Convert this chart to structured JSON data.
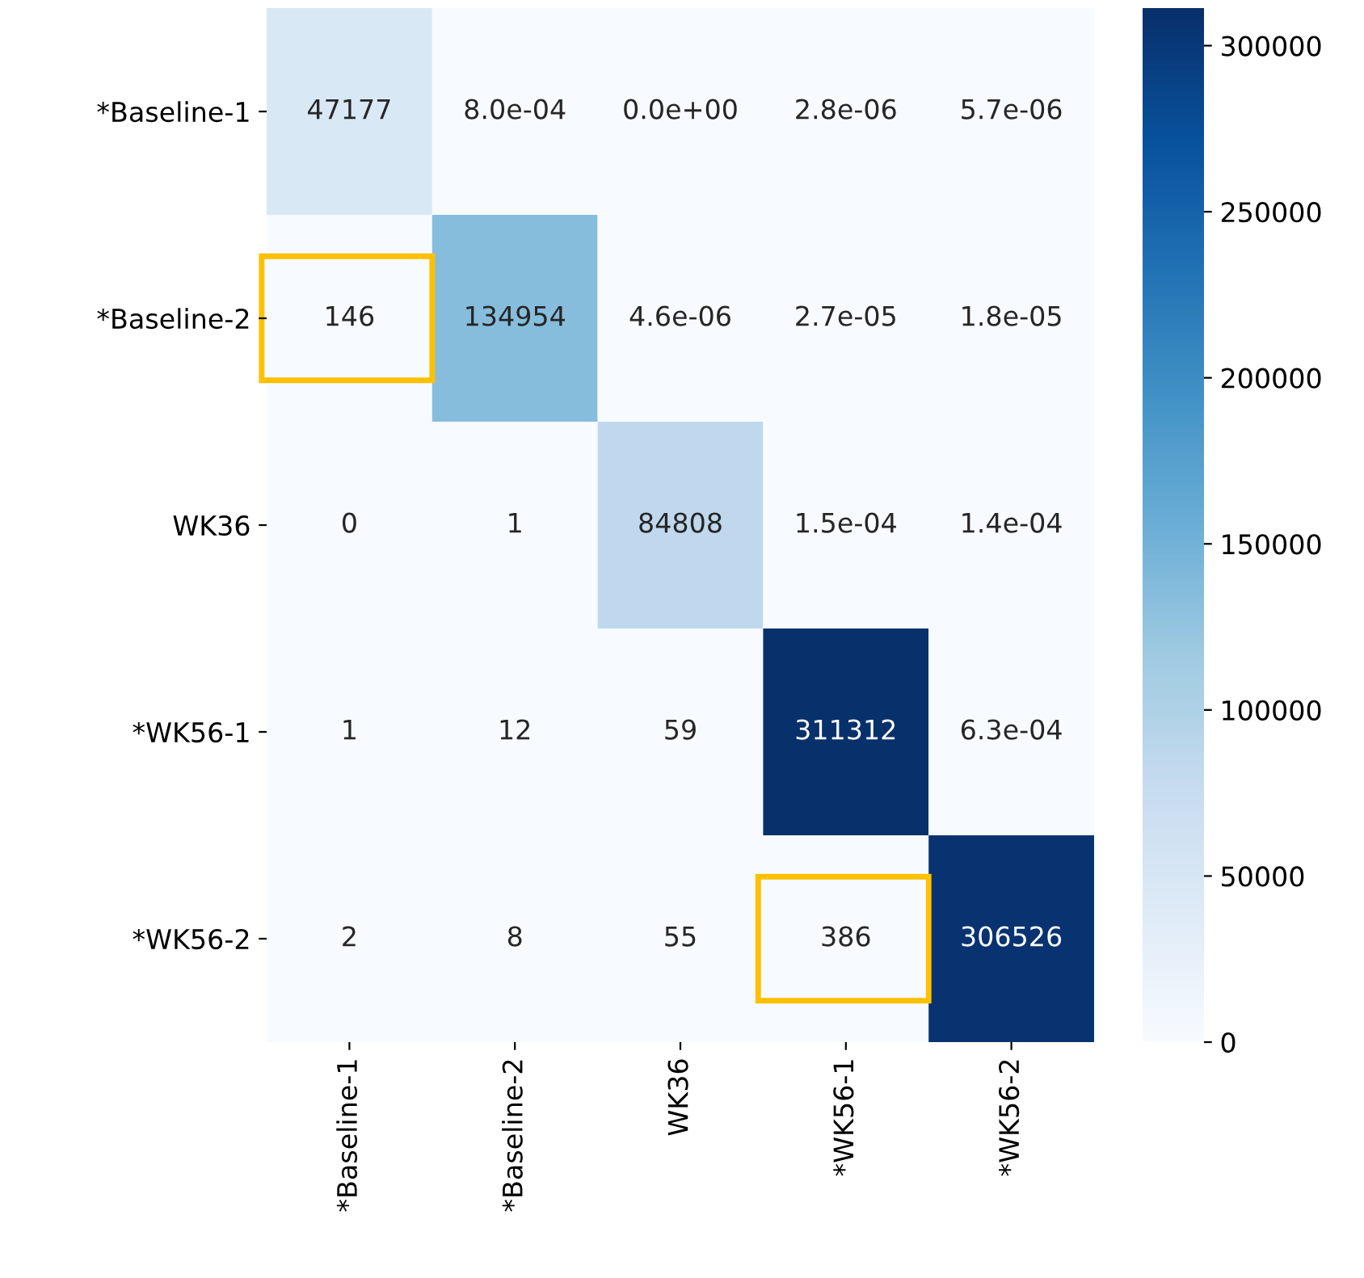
{
  "chart_data": {
    "type": "heatmap",
    "categories": [
      "*Baseline-1",
      "*Baseline-2",
      "WK36",
      "*WK56-1",
      "*WK56-2"
    ],
    "y_categories": [
      "*Baseline-1",
      "*Baseline-2",
      "WK36",
      "*WK56-1",
      "*WK56-2"
    ],
    "cells": [
      [
        47177,
        0.0008,
        0,
        2.8e-06,
        5.7e-06
      ],
      [
        146,
        134954,
        4.6e-06,
        2.7e-05,
        1.8e-05
      ],
      [
        0,
        1,
        84808,
        0.00015,
        0.00014
      ],
      [
        1,
        12,
        59,
        311312,
        0.00063
      ],
      [
        2,
        8,
        55,
        386,
        306526
      ]
    ],
    "cell_labels": [
      [
        "47177",
        "8.0e-04",
        "0.0e+00",
        "2.8e-06",
        "5.7e-06"
      ],
      [
        "146",
        "134954",
        "4.6e-06",
        "2.7e-05",
        "1.8e-05"
      ],
      [
        "0",
        "1",
        "84808",
        "1.5e-04",
        "1.4e-04"
      ],
      [
        "1",
        "12",
        "59",
        "311312",
        "6.3e-04"
      ],
      [
        "2",
        "8",
        "55",
        "386",
        "306526"
      ]
    ],
    "clim": [
      0,
      311312
    ],
    "cticks": [
      0,
      50000,
      100000,
      150000,
      200000,
      250000,
      300000
    ]
  }
}
